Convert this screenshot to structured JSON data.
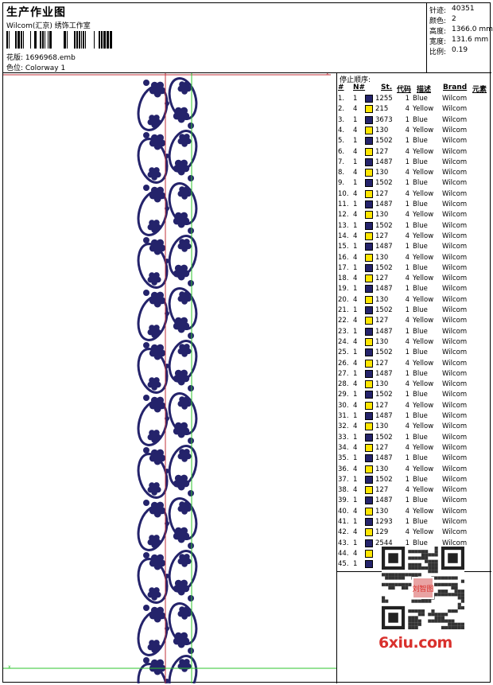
{
  "header": {
    "title": "生产作业图",
    "studio": "Wilcom(汇京) 绣饰工作室",
    "filename": "花版: 1696968.emb",
    "colorway": "色位: Colorway 1"
  },
  "stats": [
    {
      "label": "针迹:",
      "value": "40351"
    },
    {
      "label": "颜色:",
      "value": "2"
    },
    {
      "label": "高度:",
      "value": "1366.0 mm"
    },
    {
      "label": "宽度:",
      "value": "131.6 mm"
    },
    {
      "label": "比例:",
      "value": "0.19"
    }
  ],
  "colors": {
    "blue": "#24236b",
    "yellow": "#ffe600",
    "frame_red": "#c0303a",
    "guide_green": "#2ec52e",
    "logo_red": "#d9302c"
  },
  "stoplist": {
    "title": "停止顺序:",
    "headers": {
      "index": "#",
      "needle": "N#",
      "stitches": "St.",
      "code": "代码",
      "desc": "描述",
      "brand": "Brand",
      "element": "元素"
    },
    "rows": [
      {
        "i": "1.",
        "n": "1",
        "c": "blue",
        "st": "1255",
        "code": "1",
        "desc": "Blue",
        "brand": "Wilcom"
      },
      {
        "i": "2.",
        "n": "4",
        "c": "yellow",
        "st": "215",
        "code": "4",
        "desc": "Yellow",
        "brand": "Wilcom"
      },
      {
        "i": "3.",
        "n": "1",
        "c": "blue",
        "st": "3673",
        "code": "1",
        "desc": "Blue",
        "brand": "Wilcom"
      },
      {
        "i": "4.",
        "n": "4",
        "c": "yellow",
        "st": "130",
        "code": "4",
        "desc": "Yellow",
        "brand": "Wilcom"
      },
      {
        "i": "5.",
        "n": "1",
        "c": "blue",
        "st": "1502",
        "code": "1",
        "desc": "Blue",
        "brand": "Wilcom"
      },
      {
        "i": "6.",
        "n": "4",
        "c": "yellow",
        "st": "127",
        "code": "4",
        "desc": "Yellow",
        "brand": "Wilcom"
      },
      {
        "i": "7.",
        "n": "1",
        "c": "blue",
        "st": "1487",
        "code": "1",
        "desc": "Blue",
        "brand": "Wilcom"
      },
      {
        "i": "8.",
        "n": "4",
        "c": "yellow",
        "st": "130",
        "code": "4",
        "desc": "Yellow",
        "brand": "Wilcom"
      },
      {
        "i": "9.",
        "n": "1",
        "c": "blue",
        "st": "1502",
        "code": "1",
        "desc": "Blue",
        "brand": "Wilcom"
      },
      {
        "i": "10.",
        "n": "4",
        "c": "yellow",
        "st": "127",
        "code": "4",
        "desc": "Yellow",
        "brand": "Wilcom"
      },
      {
        "i": "11.",
        "n": "1",
        "c": "blue",
        "st": "1487",
        "code": "1",
        "desc": "Blue",
        "brand": "Wilcom"
      },
      {
        "i": "12.",
        "n": "4",
        "c": "yellow",
        "st": "130",
        "code": "4",
        "desc": "Yellow",
        "brand": "Wilcom"
      },
      {
        "i": "13.",
        "n": "1",
        "c": "blue",
        "st": "1502",
        "code": "1",
        "desc": "Blue",
        "brand": "Wilcom"
      },
      {
        "i": "14.",
        "n": "4",
        "c": "yellow",
        "st": "127",
        "code": "4",
        "desc": "Yellow",
        "brand": "Wilcom"
      },
      {
        "i": "15.",
        "n": "1",
        "c": "blue",
        "st": "1487",
        "code": "1",
        "desc": "Blue",
        "brand": "Wilcom"
      },
      {
        "i": "16.",
        "n": "4",
        "c": "yellow",
        "st": "130",
        "code": "4",
        "desc": "Yellow",
        "brand": "Wilcom"
      },
      {
        "i": "17.",
        "n": "1",
        "c": "blue",
        "st": "1502",
        "code": "1",
        "desc": "Blue",
        "brand": "Wilcom"
      },
      {
        "i": "18.",
        "n": "4",
        "c": "yellow",
        "st": "127",
        "code": "4",
        "desc": "Yellow",
        "brand": "Wilcom"
      },
      {
        "i": "19.",
        "n": "1",
        "c": "blue",
        "st": "1487",
        "code": "1",
        "desc": "Blue",
        "brand": "Wilcom"
      },
      {
        "i": "20.",
        "n": "4",
        "c": "yellow",
        "st": "130",
        "code": "4",
        "desc": "Yellow",
        "brand": "Wilcom"
      },
      {
        "i": "21.",
        "n": "1",
        "c": "blue",
        "st": "1502",
        "code": "1",
        "desc": "Blue",
        "brand": "Wilcom"
      },
      {
        "i": "22.",
        "n": "4",
        "c": "yellow",
        "st": "127",
        "code": "4",
        "desc": "Yellow",
        "brand": "Wilcom"
      },
      {
        "i": "23.",
        "n": "1",
        "c": "blue",
        "st": "1487",
        "code": "1",
        "desc": "Blue",
        "brand": "Wilcom"
      },
      {
        "i": "24.",
        "n": "4",
        "c": "yellow",
        "st": "130",
        "code": "4",
        "desc": "Yellow",
        "brand": "Wilcom"
      },
      {
        "i": "25.",
        "n": "1",
        "c": "blue",
        "st": "1502",
        "code": "1",
        "desc": "Blue",
        "brand": "Wilcom"
      },
      {
        "i": "26.",
        "n": "4",
        "c": "yellow",
        "st": "127",
        "code": "4",
        "desc": "Yellow",
        "brand": "Wilcom"
      },
      {
        "i": "27.",
        "n": "1",
        "c": "blue",
        "st": "1487",
        "code": "1",
        "desc": "Blue",
        "brand": "Wilcom"
      },
      {
        "i": "28.",
        "n": "4",
        "c": "yellow",
        "st": "130",
        "code": "4",
        "desc": "Yellow",
        "brand": "Wilcom"
      },
      {
        "i": "29.",
        "n": "1",
        "c": "blue",
        "st": "1502",
        "code": "1",
        "desc": "Blue",
        "brand": "Wilcom"
      },
      {
        "i": "30.",
        "n": "4",
        "c": "yellow",
        "st": "127",
        "code": "4",
        "desc": "Yellow",
        "brand": "Wilcom"
      },
      {
        "i": "31.",
        "n": "1",
        "c": "blue",
        "st": "1487",
        "code": "1",
        "desc": "Blue",
        "brand": "Wilcom"
      },
      {
        "i": "32.",
        "n": "4",
        "c": "yellow",
        "st": "130",
        "code": "4",
        "desc": "Yellow",
        "brand": "Wilcom"
      },
      {
        "i": "33.",
        "n": "1",
        "c": "blue",
        "st": "1502",
        "code": "1",
        "desc": "Blue",
        "brand": "Wilcom"
      },
      {
        "i": "34.",
        "n": "4",
        "c": "yellow",
        "st": "127",
        "code": "4",
        "desc": "Yellow",
        "brand": "Wilcom"
      },
      {
        "i": "35.",
        "n": "1",
        "c": "blue",
        "st": "1487",
        "code": "1",
        "desc": "Blue",
        "brand": "Wilcom"
      },
      {
        "i": "36.",
        "n": "4",
        "c": "yellow",
        "st": "130",
        "code": "4",
        "desc": "Yellow",
        "brand": "Wilcom"
      },
      {
        "i": "37.",
        "n": "1",
        "c": "blue",
        "st": "1502",
        "code": "1",
        "desc": "Blue",
        "brand": "Wilcom"
      },
      {
        "i": "38.",
        "n": "4",
        "c": "yellow",
        "st": "127",
        "code": "4",
        "desc": "Yellow",
        "brand": "Wilcom"
      },
      {
        "i": "39.",
        "n": "1",
        "c": "blue",
        "st": "1487",
        "code": "1",
        "desc": "Blue",
        "brand": "Wilcom"
      },
      {
        "i": "40.",
        "n": "4",
        "c": "yellow",
        "st": "130",
        "code": "4",
        "desc": "Yellow",
        "brand": "Wilcom"
      },
      {
        "i": "41.",
        "n": "1",
        "c": "blue",
        "st": "1293",
        "code": "1",
        "desc": "Blue",
        "brand": "Wilcom"
      },
      {
        "i": "42.",
        "n": "4",
        "c": "yellow",
        "st": "129",
        "code": "4",
        "desc": "Yellow",
        "brand": "Wilcom"
      },
      {
        "i": "43.",
        "n": "1",
        "c": "blue",
        "st": "2544",
        "code": "1",
        "desc": "Blue",
        "brand": "Wilcom"
      },
      {
        "i": "44.",
        "n": "4",
        "c": "yellow",
        "st": "",
        "code": "",
        "desc": "",
        "brand": ""
      },
      {
        "i": "45.",
        "n": "1",
        "c": "blue",
        "st": "",
        "code": "",
        "desc": "",
        "brand": ""
      }
    ]
  },
  "watermark": {
    "logo_text": "6xiu.com",
    "stamp_text": "刘智图"
  }
}
